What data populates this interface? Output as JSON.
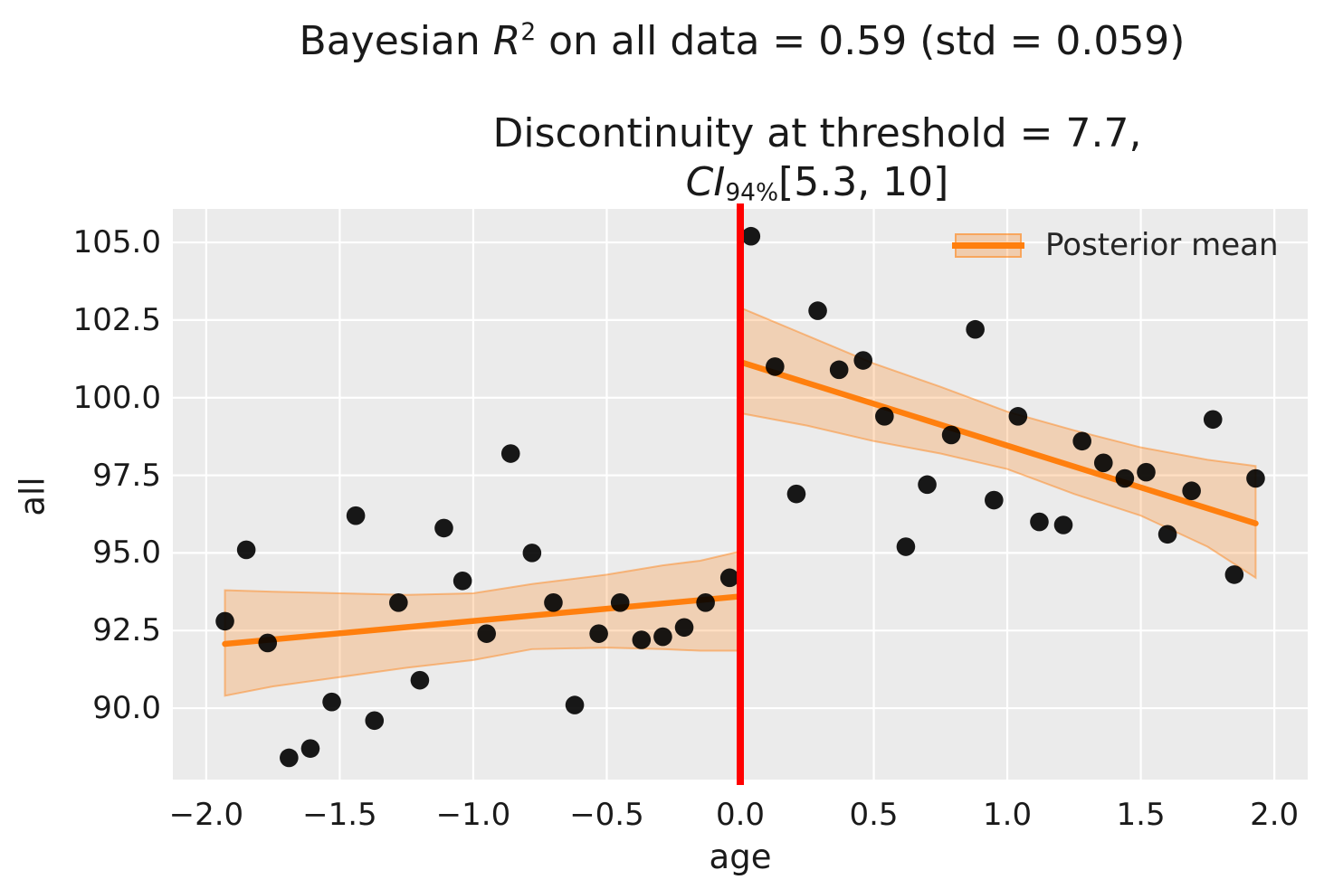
{
  "figure": {
    "title": {
      "pre": "Bayesian ",
      "var": "R",
      "sup": "2",
      "post": " on all data = 0.59 (std = 0.059)"
    },
    "subtitle": {
      "line1": "Discontinuity at threshold = 7.7,",
      "ci_var": "CI",
      "ci_sub": "94%",
      "ci_post": "[5.3, 10]"
    },
    "legend": {
      "label": "Posterior mean"
    }
  },
  "chart_data": {
    "type": "scatter",
    "title": "Bayesian R² on all data = 0.59 (std = 0.059)",
    "subtitle": "Discontinuity at threshold = 7.7, CI 94% [5.3, 10]",
    "bayesian_r2": 0.59,
    "bayesian_r2_std": 0.059,
    "discontinuity_at_threshold": 7.7,
    "ci_94_interval": [
      5.3,
      10
    ],
    "xlabel": "age",
    "ylabel": "all",
    "xlim": [
      -2.125,
      2.125
    ],
    "ylim": [
      87.7,
      106.08
    ],
    "grid": true,
    "plot_background": "#ebebeb",
    "grid_color": "#ffffff",
    "xticks": {
      "values": [
        -2.0,
        -1.5,
        -1.0,
        -0.5,
        0.0,
        0.5,
        1.0,
        1.5,
        2.0
      ],
      "labels": [
        "−2.0",
        "−1.5",
        "−1.0",
        "−0.5",
        "0.0",
        "0.5",
        "1.0",
        "1.5",
        "2.0"
      ]
    },
    "yticks": {
      "values": [
        105.0,
        102.5,
        100.0,
        97.5,
        95.0,
        92.5,
        90.0
      ],
      "labels": [
        "105.0",
        "102.5",
        "100.0",
        "97.5",
        "95.0",
        "92.5",
        "90.0"
      ]
    },
    "threshold_line": {
      "x": 0.0,
      "color": "#ff0000"
    },
    "legend": {
      "label": "Posterior mean",
      "position": "upper right"
    },
    "scatter": {
      "color": "#000000",
      "opacity": 0.9,
      "points": [
        [
          -1.93,
          92.8
        ],
        [
          -1.85,
          95.1
        ],
        [
          -1.77,
          92.1
        ],
        [
          -1.69,
          88.4
        ],
        [
          -1.61,
          88.7
        ],
        [
          -1.53,
          90.2
        ],
        [
          -1.44,
          96.2
        ],
        [
          -1.37,
          89.6
        ],
        [
          -1.28,
          93.4
        ],
        [
          -1.2,
          90.9
        ],
        [
          -1.11,
          95.8
        ],
        [
          -1.04,
          94.1
        ],
        [
          -0.95,
          92.4
        ],
        [
          -0.86,
          98.2
        ],
        [
          -0.78,
          95.0
        ],
        [
          -0.7,
          93.4
        ],
        [
          -0.62,
          90.1
        ],
        [
          -0.53,
          92.4
        ],
        [
          -0.45,
          93.4
        ],
        [
          -0.37,
          92.2
        ],
        [
          -0.29,
          92.3
        ],
        [
          -0.21,
          92.6
        ],
        [
          -0.13,
          93.4
        ],
        [
          -0.04,
          94.2
        ],
        [
          0.04,
          105.2
        ],
        [
          0.13,
          101.0
        ],
        [
          0.21,
          96.9
        ],
        [
          0.29,
          102.8
        ],
        [
          0.37,
          100.9
        ],
        [
          0.46,
          101.2
        ],
        [
          0.54,
          99.4
        ],
        [
          0.62,
          95.2
        ],
        [
          0.7,
          97.2
        ],
        [
          0.79,
          98.8
        ],
        [
          0.88,
          102.2
        ],
        [
          0.95,
          96.7
        ],
        [
          1.04,
          99.4
        ],
        [
          1.12,
          96.0
        ],
        [
          1.21,
          95.9
        ],
        [
          1.28,
          98.6
        ],
        [
          1.36,
          97.9
        ],
        [
          1.44,
          97.4
        ],
        [
          1.52,
          97.6
        ],
        [
          1.6,
          95.6
        ],
        [
          1.69,
          97.0
        ],
        [
          1.77,
          99.3
        ],
        [
          1.85,
          94.3
        ],
        [
          1.93,
          97.4
        ]
      ]
    },
    "posterior_mean": {
      "color": "#ff7f0e",
      "segments": [
        {
          "name": "left",
          "x": [
            -1.93,
            0.0
          ],
          "y": [
            92.07,
            93.6
          ]
        },
        {
          "name": "right",
          "x": [
            0.0,
            1.93
          ],
          "y": [
            101.15,
            95.95
          ]
        }
      ]
    },
    "ci_band": {
      "fill_color": "#ff7f0e",
      "fill_opacity": 0.25,
      "edge_opacity": 0.45,
      "segments": [
        {
          "name": "left",
          "x": [
            -1.93,
            -1.75,
            -1.5,
            -1.25,
            -1.0,
            -0.78,
            -0.5,
            -0.29,
            -0.15,
            0.0
          ],
          "upper": [
            93.8,
            93.75,
            93.7,
            93.65,
            93.7,
            94.0,
            94.3,
            94.6,
            94.75,
            95.05
          ],
          "lower": [
            90.4,
            90.7,
            91.0,
            91.3,
            91.55,
            91.9,
            91.95,
            91.9,
            91.85,
            91.85
          ]
        },
        {
          "name": "right",
          "x": [
            0.0,
            0.25,
            0.5,
            0.75,
            1.0,
            1.25,
            1.5,
            1.75,
            1.93
          ],
          "upper": [
            102.9,
            102.0,
            101.1,
            100.35,
            99.55,
            98.95,
            98.4,
            98.0,
            97.8
          ],
          "lower": [
            99.5,
            99.1,
            98.6,
            98.2,
            97.7,
            96.9,
            96.2,
            95.2,
            94.2
          ]
        }
      ]
    }
  }
}
